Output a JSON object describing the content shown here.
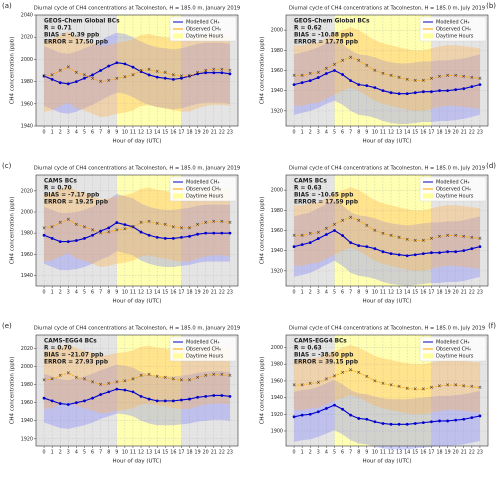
{
  "chart_data": [
    {
      "type": "line",
      "panel_label": "(a)",
      "title": "Diurnal cycle of CH4 concentrations at Tacolneston, H = 185.0 m, January 2019",
      "xlabel": "Hour of day (UTC)",
      "ylabel": "CH4 concentration (ppb)",
      "x": [
        0,
        1,
        2,
        3,
        4,
        5,
        6,
        7,
        8,
        9,
        10,
        11,
        12,
        13,
        14,
        15,
        16,
        17,
        18,
        19,
        20,
        21,
        22,
        23
      ],
      "xlim": [
        -1,
        24
      ],
      "ylim": [
        1940,
        2040
      ],
      "yticks": [
        1940,
        1960,
        1980,
        2000,
        2020,
        2040
      ],
      "grid": true,
      "legend": "upper right",
      "annotations": [
        "GEOS-Chem Global BCs",
        "R =  0.71",
        "BIAS =  -0.39 ppb",
        "ERROR =  17.50 ppb"
      ],
      "daytime": {
        "label": "Daytime Hours",
        "range": [
          9,
          17
        ],
        "color": "#ffff66"
      },
      "series": [
        {
          "name": "Modelled CH₄",
          "color": "#0000cd",
          "spread": 27,
          "values": [
            1985,
            1982,
            1979,
            1978,
            1980,
            1983,
            1986,
            1990,
            1994,
            1997,
            1996,
            1993,
            1989,
            1986,
            1984,
            1983,
            1982,
            1983,
            1985,
            1987,
            1988,
            1988,
            1988,
            1987
          ]
        },
        {
          "name": "Observed CH₄",
          "color": "#ffa500",
          "spread": 32,
          "values": [
            1985,
            1986,
            1990,
            1993,
            1988,
            1986,
            1983,
            1980,
            1981,
            1983,
            1984,
            1986,
            1990,
            1991,
            1989,
            1988,
            1986,
            1985,
            1985,
            1988,
            1990,
            1991,
            1991,
            1990
          ]
        }
      ]
    },
    {
      "type": "line",
      "panel_label": "(b)",
      "title": "Diurnal cycle of CH4 concentrations at Tacolneston, H = 185.0 m, July 2019",
      "xlabel": "Hour of day (UTC)",
      "ylabel": "CH4 concentration (ppb)",
      "x": [
        0,
        1,
        2,
        3,
        4,
        5,
        6,
        7,
        8,
        9,
        10,
        11,
        12,
        13,
        14,
        15,
        16,
        17,
        18,
        19,
        20,
        21,
        22,
        23
      ],
      "xlim": [
        -1,
        24
      ],
      "ylim": [
        1905,
        2015
      ],
      "yticks": [
        1920,
        1940,
        1960,
        1980,
        2000
      ],
      "grid": true,
      "legend": "upper right",
      "annotations": [
        "GEOS-Chem Global BCs",
        "R =  0.62",
        "BIAS =  -10.88 ppb",
        "ERROR =  17.78 ppb"
      ],
      "daytime": {
        "label": "Daytime Hours",
        "range": [
          5,
          17
        ],
        "color": "#ffff66"
      },
      "series": [
        {
          "name": "Modelled CH₄",
          "color": "#0000cd",
          "spread": 30,
          "values": [
            1946,
            1948,
            1950,
            1953,
            1957,
            1960,
            1956,
            1950,
            1946,
            1945,
            1943,
            1940,
            1938,
            1937,
            1937,
            1938,
            1939,
            1939,
            1940,
            1940,
            1941,
            1942,
            1944,
            1946
          ]
        },
        {
          "name": "Observed CH₄",
          "color": "#ffa500",
          "spread": 30,
          "values": [
            1955,
            1955,
            1957,
            1958,
            1962,
            1966,
            1970,
            1973,
            1970,
            1965,
            1960,
            1957,
            1955,
            1953,
            1951,
            1950,
            1950,
            1952,
            1954,
            1955,
            1955,
            1954,
            1953,
            1952
          ]
        }
      ]
    },
    {
      "type": "line",
      "panel_label": "(c)",
      "title": "Diurnal cycle of CH4 concentrations at Tacolneston, H = 185.0 m, January 2019",
      "xlabel": "Hour of day (UTC)",
      "ylabel": "CH4 concentration (ppb)",
      "x": [
        0,
        1,
        2,
        3,
        4,
        5,
        6,
        7,
        8,
        9,
        10,
        11,
        12,
        13,
        14,
        15,
        16,
        17,
        18,
        19,
        20,
        21,
        22,
        23
      ],
      "xlim": [
        -1,
        24
      ],
      "ylim": [
        1930,
        2035
      ],
      "yticks": [
        1940,
        1960,
        1980,
        2000,
        2020
      ],
      "grid": true,
      "legend": "upper right",
      "annotations": [
        "CAMS BCs",
        "R =  0.70",
        "BIAS =  -7.17 ppb",
        "ERROR =  19.25 ppb"
      ],
      "daytime": {
        "label": "Daytime Hours",
        "range": [
          9,
          17
        ],
        "color": "#ffff66"
      },
      "series": [
        {
          "name": "Modelled CH₄",
          "color": "#0000cd",
          "spread": 27,
          "values": [
            1978,
            1975,
            1972,
            1972,
            1973,
            1975,
            1978,
            1982,
            1985,
            1990,
            1988,
            1986,
            1981,
            1978,
            1976,
            1975,
            1975,
            1976,
            1977,
            1979,
            1980,
            1980,
            1980,
            1980
          ]
        },
        {
          "name": "Observed CH₄",
          "color": "#ffa500",
          "spread": 32,
          "values": [
            1985,
            1986,
            1990,
            1993,
            1988,
            1986,
            1983,
            1980,
            1981,
            1983,
            1984,
            1986,
            1990,
            1991,
            1989,
            1988,
            1986,
            1985,
            1985,
            1988,
            1990,
            1991,
            1991,
            1990
          ]
        }
      ]
    },
    {
      "type": "line",
      "panel_label": "(d)",
      "title": "Diurnal cycle of CH4 concentrations at Tacolneston, H = 185.0 m, July 2019",
      "xlabel": "Hour of day (UTC)",
      "ylabel": "CH4 concentration (ppb)",
      "x": [
        0,
        1,
        2,
        3,
        4,
        5,
        6,
        7,
        8,
        9,
        10,
        11,
        12,
        13,
        14,
        15,
        16,
        17,
        18,
        19,
        20,
        21,
        22,
        23
      ],
      "xlim": [
        -1,
        24
      ],
      "ylim": [
        1905,
        2015
      ],
      "yticks": [
        1920,
        1940,
        1960,
        1980,
        2000
      ],
      "grid": true,
      "legend": "upper right",
      "annotations": [
        "CAMS BCs",
        "R =  0.63",
        "BIAS =  -10.65 ppb",
        "ERROR =  17.59 ppb"
      ],
      "daytime": {
        "label": "Daytime Hours",
        "range": [
          5,
          17
        ],
        "color": "#ffff66"
      },
      "series": [
        {
          "name": "Modelled CH₄",
          "color": "#0000cd",
          "spread": 30,
          "values": [
            1944,
            1946,
            1948,
            1952,
            1956,
            1960,
            1955,
            1948,
            1945,
            1944,
            1942,
            1939,
            1937,
            1936,
            1935,
            1936,
            1937,
            1938,
            1938,
            1939,
            1939,
            1940,
            1942,
            1944
          ]
        },
        {
          "name": "Observed CH₄",
          "color": "#ffa500",
          "spread": 30,
          "values": [
            1955,
            1955,
            1957,
            1958,
            1962,
            1966,
            1970,
            1973,
            1970,
            1965,
            1960,
            1957,
            1955,
            1953,
            1951,
            1950,
            1950,
            1952,
            1954,
            1955,
            1955,
            1954,
            1953,
            1952
          ]
        }
      ]
    },
    {
      "type": "line",
      "panel_label": "(e)",
      "title": "Diurnal cycle of CH4 concentrations at Tacolneston, H = 185.0 m, January 2019",
      "xlabel": "Hour of day (UTC)",
      "ylabel": "CH4 concentration (ppb)",
      "x": [
        0,
        1,
        2,
        3,
        4,
        5,
        6,
        7,
        8,
        9,
        10,
        11,
        12,
        13,
        14,
        15,
        16,
        17,
        18,
        19,
        20,
        21,
        22,
        23
      ],
      "xlim": [
        -1,
        24
      ],
      "ylim": [
        1912,
        2035
      ],
      "yticks": [
        1920,
        1940,
        1960,
        1980,
        2000,
        2020
      ],
      "grid": true,
      "legend": "upper right",
      "annotations": [
        "CAMS-EGG4 BCs",
        "R =  0.70",
        "BIAS =  -21.07 ppb",
        "ERROR =  27.93 ppb"
      ],
      "daytime": {
        "label": "Daytime Hours",
        "range": [
          9,
          17
        ],
        "color": "#ffff66"
      },
      "series": [
        {
          "name": "Modelled CH₄",
          "color": "#0000cd",
          "spread": 27,
          "values": [
            1965,
            1962,
            1959,
            1958,
            1960,
            1962,
            1965,
            1969,
            1972,
            1975,
            1974,
            1972,
            1967,
            1964,
            1962,
            1962,
            1962,
            1963,
            1964,
            1966,
            1967,
            1968,
            1968,
            1967
          ]
        },
        {
          "name": "Observed CH₄",
          "color": "#ffa500",
          "spread": 32,
          "values": [
            1985,
            1986,
            1990,
            1993,
            1988,
            1986,
            1983,
            1980,
            1981,
            1983,
            1984,
            1986,
            1990,
            1991,
            1989,
            1988,
            1986,
            1985,
            1985,
            1988,
            1990,
            1991,
            1991,
            1990
          ]
        }
      ]
    },
    {
      "type": "line",
      "panel_label": "(f)",
      "title": "Diurnal cycle of CH4 concentrations at Tacolneston, H = 185.0 m, July 2019",
      "xlabel": "Hour of day (UTC)",
      "ylabel": "CH4 concentration (ppb)",
      "x": [
        0,
        1,
        2,
        3,
        4,
        5,
        6,
        7,
        8,
        9,
        10,
        11,
        12,
        13,
        14,
        15,
        16,
        17,
        18,
        19,
        20,
        21,
        22,
        23
      ],
      "xlim": [
        -1,
        24
      ],
      "ylim": [
        1882,
        2015
      ],
      "yticks": [
        1900,
        1920,
        1940,
        1960,
        1980,
        2000
      ],
      "grid": true,
      "legend": "upper right",
      "annotations": [
        "CAMS-EGG4 BCs",
        "R =  0.63",
        "BIAS =  -38.50 ppb",
        "ERROR =  39.15 ppb"
      ],
      "daytime": {
        "label": "Daytime Hours",
        "range": [
          5,
          17
        ],
        "color": "#ffff66"
      },
      "series": [
        {
          "name": "Modelled CH₄",
          "color": "#0000cd",
          "spread": 30,
          "values": [
            1917,
            1919,
            1920,
            1923,
            1927,
            1931,
            1926,
            1919,
            1915,
            1914,
            1911,
            1909,
            1908,
            1908,
            1908,
            1909,
            1910,
            1911,
            1912,
            1912,
            1913,
            1914,
            1916,
            1918
          ]
        },
        {
          "name": "Observed CH₄",
          "color": "#ffa500",
          "spread": 30,
          "values": [
            1955,
            1955,
            1957,
            1958,
            1962,
            1966,
            1970,
            1973,
            1970,
            1965,
            1960,
            1957,
            1955,
            1953,
            1951,
            1950,
            1950,
            1952,
            1954,
            1955,
            1955,
            1954,
            1953,
            1952
          ]
        }
      ]
    }
  ]
}
